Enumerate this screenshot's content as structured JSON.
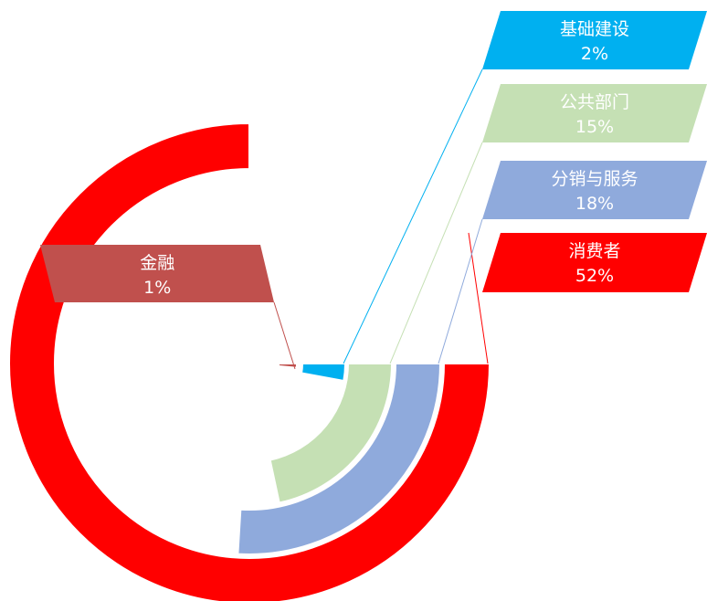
{
  "chart_data": {
    "type": "pie",
    "chart_kind": "radial-bar",
    "categories": [
      "消费者",
      "分销与服务",
      "公共部门",
      "基础建设",
      "金融"
    ],
    "values": [
      52,
      18,
      15,
      2,
      1
    ],
    "value_labels": [
      "52%",
      "18%",
      "15%",
      "2%",
      "1%"
    ],
    "colors": [
      "#ff0000",
      "#8faadc",
      "#c5e0b4",
      "#00b0f0",
      "#c0504d"
    ],
    "legend": "callouts",
    "grid": false
  }
}
